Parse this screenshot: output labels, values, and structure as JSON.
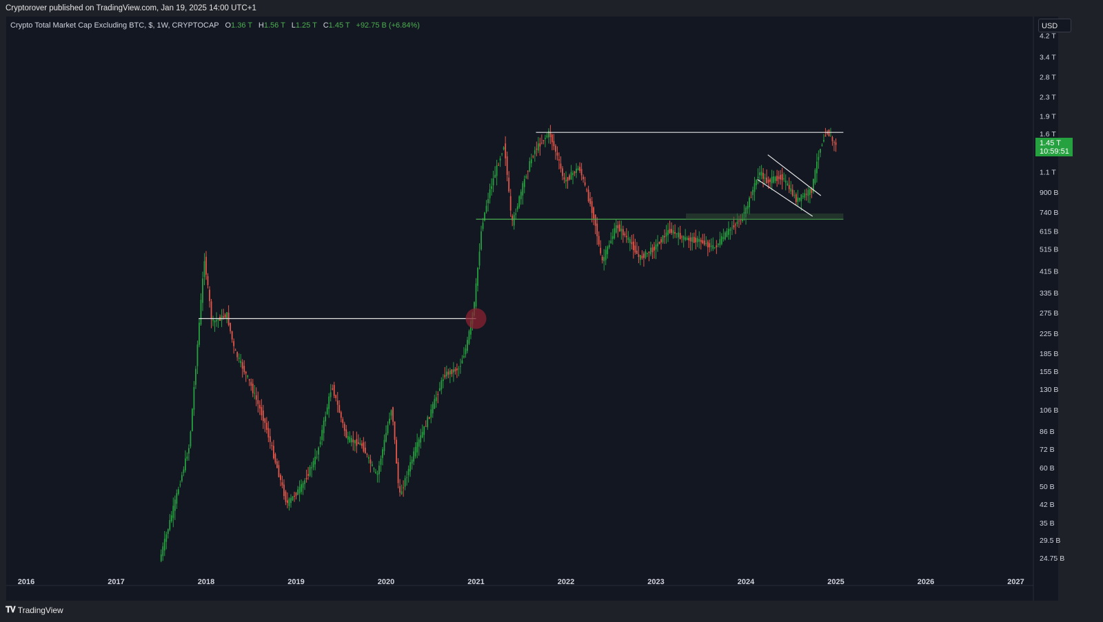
{
  "header": {
    "published": "Cryptorover published on TradingView.com, Jan 19, 2025 14:00 UTC+1"
  },
  "legend": {
    "symbol": "Crypto Total Market Cap Excluding BTC, $, 1W, CRYPTOCAP",
    "open_label": "O",
    "open": "1.36 T",
    "high_label": "H",
    "high": "1.56 T",
    "low_label": "L",
    "low": "1.25 T",
    "close_label": "C",
    "close": "1.45 T",
    "change": "+92.75 B (+6.84%)"
  },
  "price_scale": {
    "currency": "USD",
    "last_price": "1.45 T",
    "countdown": "10:59:51",
    "tick_labels": [
      "4.2 T",
      "3.4 T",
      "2.8 T",
      "2.3 T",
      "1.9 T",
      "1.6 T",
      "1.1 T",
      "900 B",
      "740 B",
      "615 B",
      "515 B",
      "415 B",
      "335 B",
      "275 B",
      "225 B",
      "185 B",
      "155 B",
      "130 B",
      "106 B",
      "86 B",
      "72 B",
      "60 B",
      "50 B",
      "42 B",
      "35 B",
      "29.5 B",
      "24.75 B"
    ]
  },
  "time_scale": {
    "labels": [
      "2016",
      "2017",
      "2018",
      "2019",
      "2020",
      "2021",
      "2022",
      "2023",
      "2024",
      "2025",
      "2026",
      "2027"
    ]
  },
  "footer": {
    "brand": "TradingView"
  },
  "colors": {
    "up": "#26a140",
    "down": "#e4584b",
    "background": "#131722",
    "resistance_line": "#e6e6e6",
    "support_line": "#4caf50",
    "breakout_marker": "#8b2232"
  },
  "chart_data": {
    "type": "candlestick",
    "timeframe": "1W",
    "log_scale": true,
    "series": [
      {
        "name": "Crypto Total Market Cap Excluding BTC",
        "x": [
          "2017-07",
          "2017-09",
          "2017-11",
          "2018-01",
          "2018-02",
          "2018-04",
          "2018-05",
          "2018-07",
          "2018-09",
          "2018-12",
          "2019-02",
          "2019-04",
          "2019-06",
          "2019-08",
          "2019-10",
          "2019-12",
          "2020-02",
          "2020-03",
          "2020-05",
          "2020-07",
          "2020-09",
          "2020-11",
          "2020-12",
          "2021-01",
          "2021-02",
          "2021-03",
          "2021-05",
          "2021-06",
          "2021-08",
          "2021-09",
          "2021-11",
          "2021-12",
          "2022-01",
          "2022-03",
          "2022-05",
          "2022-06",
          "2022-08",
          "2022-10",
          "2022-11",
          "2023-01",
          "2023-03",
          "2023-05",
          "2023-07",
          "2023-09",
          "2023-11",
          "2024-01",
          "2024-03",
          "2024-04",
          "2024-06",
          "2024-08",
          "2024-10",
          "2024-11",
          "2024-12",
          "2025-01"
        ],
        "y": [
          24000000000.0,
          42000000000.0,
          75000000000.0,
          470000000000.0,
          250000000000.0,
          270000000000.0,
          190000000000.0,
          140000000000.0,
          95000000000.0,
          42000000000.0,
          50000000000.0,
          68000000000.0,
          135000000000.0,
          80000000000.0,
          75000000000.0,
          55000000000.0,
          110000000000.0,
          45000000000.0,
          70000000000.0,
          100000000000.0,
          150000000000.0,
          160000000000.0,
          200000000000.0,
          300000000000.0,
          650000000000.0,
          900000000000.0,
          1450000000000.0,
          650000000000.0,
          1100000000000.0,
          1350000000000.0,
          1620000000000.0,
          1300000000000.0,
          1000000000000.0,
          1150000000000.0,
          700000000000.0,
          450000000000.0,
          650000000000.0,
          540000000000.0,
          470000000000.0,
          520000000000.0,
          620000000000.0,
          570000000000.0,
          560000000000.0,
          520000000000.0,
          620000000000.0,
          720000000000.0,
          1100000000000.0,
          1000000000000.0,
          1050000000000.0,
          830000000000.0,
          920000000000.0,
          1350000000000.0,
          1650000000000.0,
          1450000000000.0
        ]
      }
    ],
    "annotations": [
      {
        "type": "horizontal-line",
        "color": "white",
        "from": "2017-12",
        "to": "2021-01",
        "y": 260000000000.0
      },
      {
        "type": "circle-marker",
        "x": "2021-01",
        "y": 260000000000.0
      },
      {
        "type": "horizontal-line",
        "color": "white",
        "from": "2021-09",
        "to": "2025-02",
        "y": 1620000000000.0
      },
      {
        "type": "horizontal-line",
        "color": "green",
        "from": "2021-01",
        "to": "2025-02",
        "y": 690000000000.0
      },
      {
        "type": "zone",
        "from": "2023-05",
        "to": "2025-02",
        "y_range": [
          690000000000.0,
          730000000000.0
        ]
      },
      {
        "type": "descending-channel",
        "from": "2024-03",
        "to": "2024-11"
      }
    ]
  }
}
